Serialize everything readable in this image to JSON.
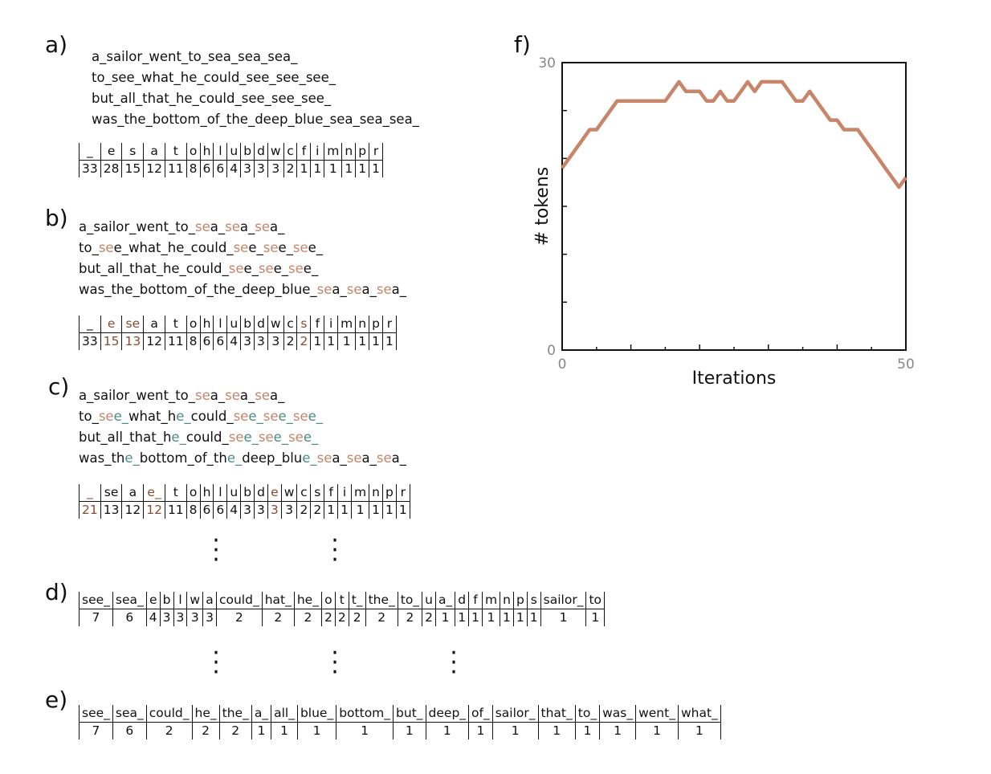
{
  "panels": {
    "a": {
      "label": "a)",
      "lines": [
        [
          {
            "t": "a_sailor_went_to_sea_sea_sea_"
          }
        ],
        [
          {
            "t": "to_see_what_he_could_see_see_see_"
          }
        ],
        [
          {
            "t": "but_all_that_he_could_see_see_see_"
          }
        ],
        [
          {
            "t": "was_the_bottom_of_the_deep_blue_sea_sea_sea_"
          }
        ]
      ],
      "table": {
        "tokens": [
          "_",
          "e",
          "s",
          "a",
          "t",
          "o",
          "h",
          "l",
          "u",
          "b",
          "d",
          "w",
          "c",
          "f",
          "i",
          "m",
          "n",
          "p",
          "r"
        ],
        "counts": [
          "33",
          "28",
          "15",
          "12",
          "11",
          "8",
          "6",
          "6",
          "4",
          "3",
          "3",
          "3",
          "2",
          "1",
          "1",
          "1",
          "1",
          "1",
          "1"
        ],
        "highlight": []
      }
    },
    "b": {
      "label": "b)",
      "lines": [
        [
          {
            "t": "a_sailor_went_to_"
          },
          {
            "t": "se",
            "c": "a"
          },
          {
            "t": "a_"
          },
          {
            "t": "se",
            "c": "a"
          },
          {
            "t": "a_"
          },
          {
            "t": "se",
            "c": "a"
          },
          {
            "t": "a_"
          }
        ],
        [
          {
            "t": "to_"
          },
          {
            "t": "se",
            "c": "a"
          },
          {
            "t": "e_what_he_could_"
          },
          {
            "t": "se",
            "c": "a"
          },
          {
            "t": "e_"
          },
          {
            "t": "se",
            "c": "a"
          },
          {
            "t": "e_"
          },
          {
            "t": "se",
            "c": "a"
          },
          {
            "t": "e_"
          }
        ],
        [
          {
            "t": "but_all_that_he_could_"
          },
          {
            "t": "se",
            "c": "a"
          },
          {
            "t": "e_"
          },
          {
            "t": "se",
            "c": "a"
          },
          {
            "t": "e_"
          },
          {
            "t": "se",
            "c": "a"
          },
          {
            "t": "e_"
          }
        ],
        [
          {
            "t": "was_the_bottom_of_the_deep_blue_"
          },
          {
            "t": "se",
            "c": "a"
          },
          {
            "t": "a_"
          },
          {
            "t": "se",
            "c": "a"
          },
          {
            "t": "a_"
          },
          {
            "t": "se",
            "c": "a"
          },
          {
            "t": "a_"
          }
        ]
      ],
      "table": {
        "tokens": [
          "_",
          "e",
          "se",
          "a",
          "t",
          "o",
          "h",
          "l",
          "u",
          "b",
          "d",
          "w",
          "c",
          "s",
          "f",
          "i",
          "m",
          "n",
          "p",
          "r"
        ],
        "counts": [
          "33",
          "15",
          "13",
          "12",
          "11",
          "8",
          "6",
          "6",
          "4",
          "3",
          "3",
          "3",
          "2",
          "2",
          "1",
          "1",
          "1",
          "1",
          "1",
          "1"
        ],
        "highlight": [
          1,
          2,
          13
        ]
      }
    },
    "c": {
      "label": "c)",
      "lines": [
        [
          {
            "t": "a_sailor_went_to_"
          },
          {
            "t": "se",
            "c": "a"
          },
          {
            "t": "a_"
          },
          {
            "t": "se",
            "c": "a"
          },
          {
            "t": "a_"
          },
          {
            "t": "se",
            "c": "a"
          },
          {
            "t": "a_"
          }
        ],
        [
          {
            "t": "to_"
          },
          {
            "t": "se",
            "c": "a"
          },
          {
            "t": "e_",
            "c": "b"
          },
          {
            "t": "what_h"
          },
          {
            "t": "e_",
            "c": "b"
          },
          {
            "t": "could_"
          },
          {
            "t": "se",
            "c": "a"
          },
          {
            "t": "e_",
            "c": "b"
          },
          {
            "t": "se",
            "c": "a"
          },
          {
            "t": "e_",
            "c": "b"
          },
          {
            "t": "se",
            "c": "a"
          },
          {
            "t": "e_",
            "c": "b"
          }
        ],
        [
          {
            "t": "but_all_that_h"
          },
          {
            "t": "e_",
            "c": "b"
          },
          {
            "t": "could_"
          },
          {
            "t": "se",
            "c": "a"
          },
          {
            "t": "e_",
            "c": "b"
          },
          {
            "t": "se",
            "c": "a"
          },
          {
            "t": "e_",
            "c": "b"
          },
          {
            "t": "se",
            "c": "a"
          },
          {
            "t": "e_",
            "c": "b"
          }
        ],
        [
          {
            "t": "was_th"
          },
          {
            "t": "e_",
            "c": "b"
          },
          {
            "t": "bottom_of_th"
          },
          {
            "t": "e_",
            "c": "b"
          },
          {
            "t": "deep_blu"
          },
          {
            "t": "e_",
            "c": "b"
          },
          {
            "t": "se",
            "c": "a"
          },
          {
            "t": "a_"
          },
          {
            "t": "se",
            "c": "a"
          },
          {
            "t": "a_"
          },
          {
            "t": "se",
            "c": "a"
          },
          {
            "t": "a_"
          }
        ]
      ],
      "table": {
        "tokens": [
          "_",
          "se",
          "a",
          "e_",
          "t",
          "o",
          "h",
          "l",
          "u",
          "b",
          "d",
          "e",
          "w",
          "c",
          "s",
          "f",
          "i",
          "m",
          "n",
          "p",
          "r"
        ],
        "counts": [
          "21",
          "13",
          "12",
          "12",
          "11",
          "8",
          "6",
          "6",
          "4",
          "3",
          "3",
          "3",
          "3",
          "2",
          "2",
          "1",
          "1",
          "1",
          "1",
          "1",
          "1"
        ],
        "highlight": [
          0,
          3,
          11
        ]
      }
    },
    "d": {
      "label": "d)",
      "table": {
        "tokens": [
          "see_",
          "sea_",
          "e",
          "b",
          "l",
          "w",
          "a",
          "could_",
          "hat_",
          "he_",
          "o",
          "t",
          "t_",
          "the_",
          "to_",
          "u",
          "a_",
          "d",
          "f",
          "m",
          "n",
          "p",
          "s",
          "sailor_",
          "to"
        ],
        "counts": [
          "7",
          "6",
          "4",
          "3",
          "3",
          "3",
          "3",
          "2",
          "2",
          "2",
          "2",
          "2",
          "2",
          "2",
          "2",
          "2",
          "1",
          "1",
          "1",
          "1",
          "1",
          "1",
          "1",
          "1",
          "1"
        ],
        "highlight": []
      }
    },
    "e": {
      "label": "e)",
      "table": {
        "tokens": [
          "see_",
          "sea_",
          "could_",
          "he_",
          "the_",
          "a_",
          "all_",
          "blue_",
          "bottom_",
          "but_",
          "deep_",
          "of_",
          "sailor_",
          "that_",
          "to_",
          "was_",
          "went_",
          "what_"
        ],
        "counts": [
          "7",
          "6",
          "2",
          "2",
          "2",
          "1",
          "1",
          "1",
          "1",
          "1",
          "1",
          "1",
          "1",
          "1",
          "1",
          "1",
          "1",
          "1"
        ],
        "highlight": []
      }
    },
    "f": {
      "label": "f)"
    }
  },
  "colors": {
    "merge_a": "#c4856a",
    "merge_b": "#4b8c84",
    "count_highlight": "#8a4b30",
    "line": "#c8856a"
  },
  "chart_data": {
    "type": "line",
    "xlabel": "Iterations",
    "ylabel": "# tokens",
    "xlim": [
      0,
      50
    ],
    "ylim": [
      0,
      30
    ],
    "xticks": [
      "0",
      "50"
    ],
    "yticks": [
      "0",
      "30"
    ],
    "x": [
      0,
      1,
      2,
      3,
      4,
      5,
      6,
      7,
      8,
      9,
      10,
      11,
      12,
      13,
      14,
      15,
      16,
      17,
      18,
      19,
      20,
      21,
      22,
      23,
      24,
      25,
      26,
      27,
      28,
      29,
      30,
      31,
      32,
      33,
      34,
      35,
      36,
      37,
      38,
      39,
      40,
      41,
      42,
      43,
      44,
      45,
      46,
      47,
      48,
      49,
      50
    ],
    "series": [
      {
        "values": [
          19,
          20,
          21,
          22,
          23,
          23,
          24,
          25,
          26,
          26,
          26,
          26,
          26,
          26,
          26,
          26,
          27,
          28,
          27,
          27,
          27,
          26,
          26,
          27,
          26,
          26,
          27,
          28,
          27,
          28,
          28,
          28,
          28,
          27,
          26,
          26,
          27,
          26,
          25,
          24,
          24,
          23,
          23,
          23,
          22,
          21,
          20,
          19,
          18,
          17,
          18
        ]
      }
    ],
    "grid": false
  }
}
